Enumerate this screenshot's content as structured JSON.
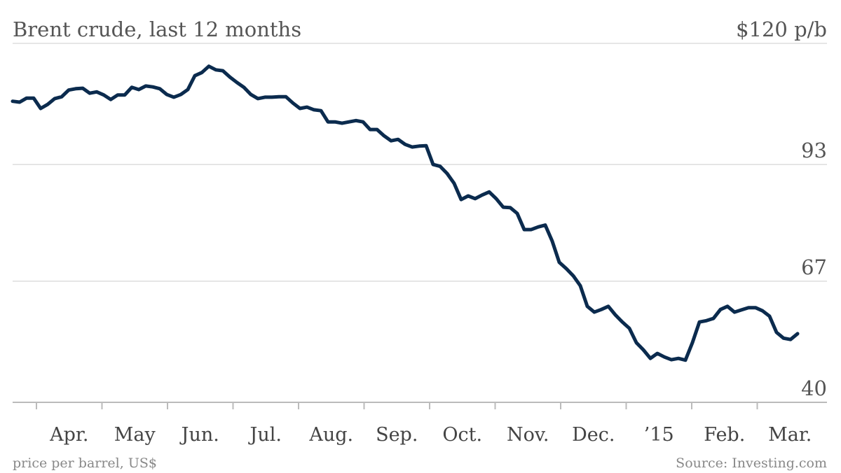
{
  "chart_data": {
    "type": "line",
    "title": "Brent crude, last 12 months",
    "ylabel": "price per barrel, US$",
    "source": "Source: Investing.com",
    "x_labels": [
      "Apr.",
      "May",
      "Jun.",
      "Jul.",
      "Aug.",
      "Sep.",
      "Oct.",
      "Nov.",
      "Dec.",
      "’15",
      "Feb.",
      "Mar."
    ],
    "ylim": [
      40,
      120
    ],
    "yticks": [
      40,
      67,
      93,
      {
        "value": 120,
        "label": "$120 p/b"
      }
    ],
    "grid": true,
    "series": [
      {
        "name": "Brent crude",
        "color": "#0b2b4e",
        "values": [
          107.1,
          106.9,
          107.8,
          107.8,
          105.5,
          106.4,
          107.7,
          108.1,
          109.6,
          109.9,
          110.0,
          108.9,
          109.2,
          108.5,
          107.5,
          108.5,
          108.5,
          110.2,
          109.7,
          110.5,
          110.3,
          109.9,
          108.6,
          108.0,
          108.6,
          109.7,
          112.8,
          113.5,
          114.9,
          114.1,
          113.9,
          112.5,
          111.3,
          110.2,
          108.6,
          107.7,
          108.0,
          108.0,
          108.1,
          108.1,
          106.7,
          105.5,
          105.8,
          105.2,
          105.0,
          102.5,
          102.5,
          102.2,
          102.5,
          102.8,
          102.5,
          100.8,
          100.8,
          99.4,
          98.3,
          98.6,
          97.5,
          96.9,
          97.1,
          97.2,
          93.0,
          92.6,
          91.0,
          88.8,
          85.2,
          86.0,
          85.4,
          86.2,
          86.9,
          85.4,
          83.5,
          83.4,
          82.1,
          78.5,
          78.5,
          79.1,
          79.5,
          75.9,
          71.2,
          69.8,
          68.2,
          66.0,
          61.4,
          60.1,
          60.7,
          61.4,
          59.5,
          57.9,
          56.5,
          53.3,
          51.7,
          49.8,
          50.9,
          50.1,
          49.5,
          49.8,
          49.4,
          53.3,
          57.9,
          58.2,
          58.7,
          60.7,
          61.4,
          60.1,
          60.6,
          61.1,
          61.1,
          60.4,
          59.2,
          55.6,
          54.3,
          54.0,
          55.3
        ]
      }
    ]
  }
}
